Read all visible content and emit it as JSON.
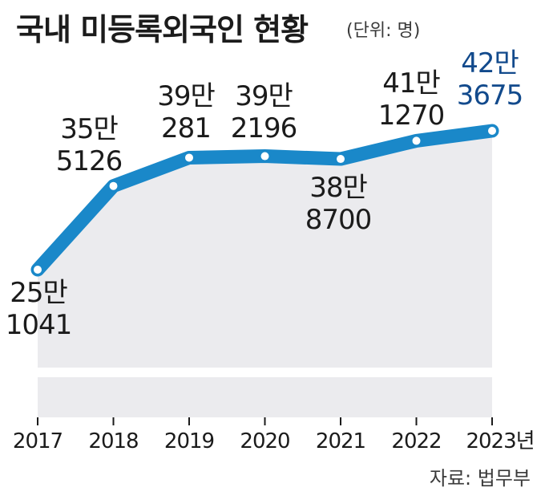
{
  "title": "국내 미등록외국인 현황",
  "unit_note": "(단위: 명)",
  "source": "자료: 법무부",
  "colors": {
    "line": "#1a88c9",
    "area": "#ebebee",
    "highlight": "#124a8c",
    "text": "#1b1b1b"
  },
  "chart_data": {
    "type": "line",
    "title": "국내 미등록외국인 현황",
    "unit": "명",
    "x": [
      "2017",
      "2018",
      "2019",
      "2020",
      "2021",
      "2022",
      "2023년"
    ],
    "series": [
      {
        "values": [
          251041,
          355126,
          390281,
          392196,
          388700,
          411270,
          423675
        ]
      }
    ],
    "point_labels": [
      [
        "25만",
        "1041"
      ],
      [
        "35만",
        "5126"
      ],
      [
        "39만",
        "281"
      ],
      [
        "39만",
        "2196"
      ],
      [
        "38만",
        "8700"
      ],
      [
        "41만",
        "1270"
      ],
      [
        "42만",
        "3675"
      ]
    ],
    "highlight_index": 6,
    "grid": false,
    "legend": "none"
  }
}
